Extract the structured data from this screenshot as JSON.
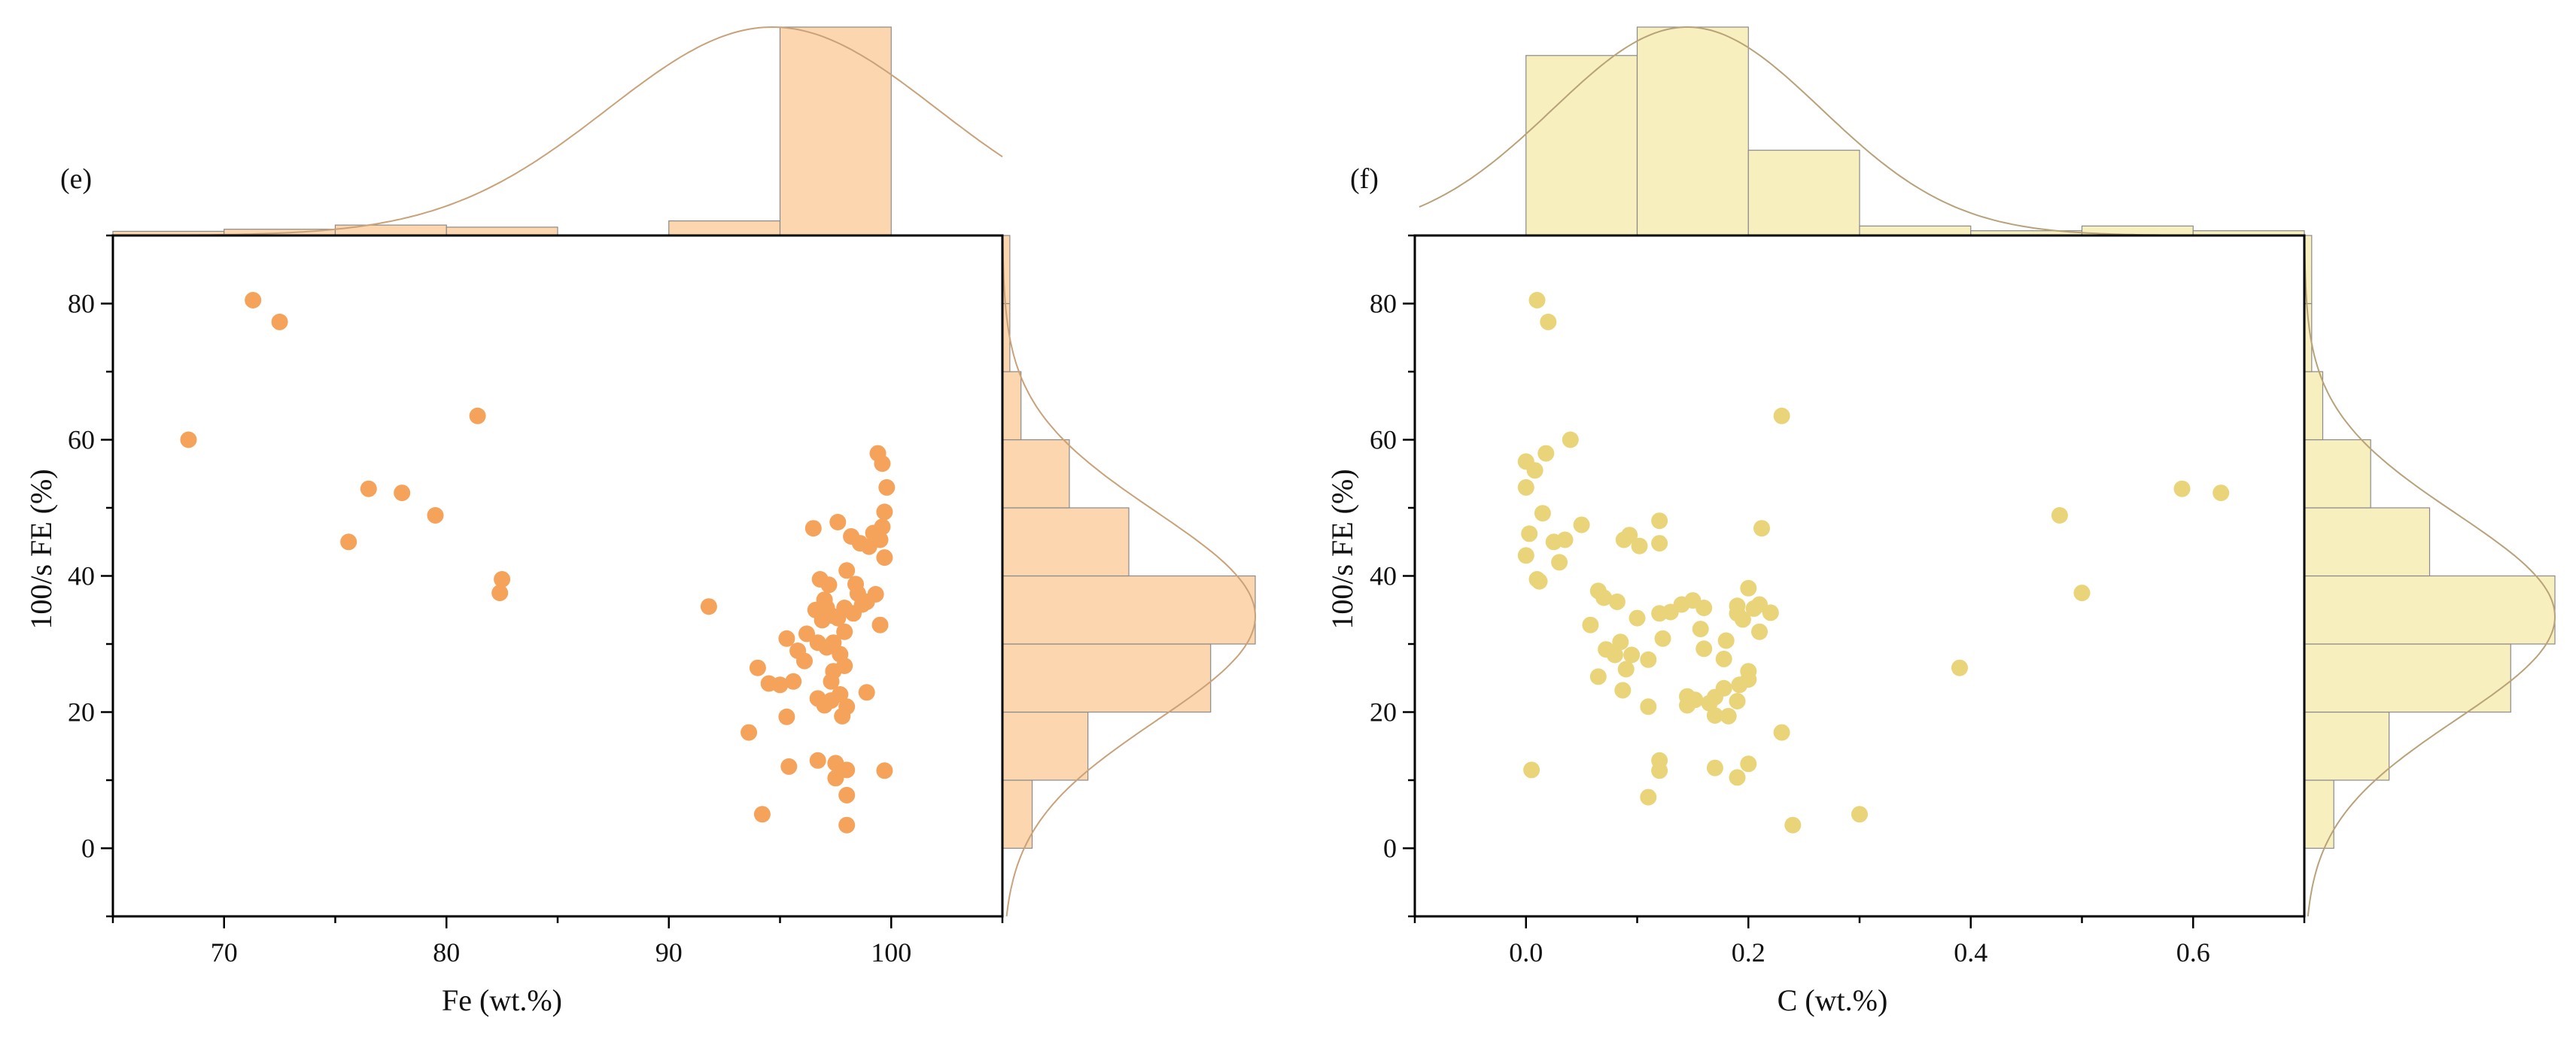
{
  "chart_data": [
    {
      "type": "scatter",
      "panel_label": "(e)",
      "xlabel": "Fe (wt.%)",
      "ylabel": "100/s FE (%)",
      "xlim": [
        65,
        105
      ],
      "ylim": [
        -10,
        90
      ],
      "xticks": [
        70,
        80,
        90,
        100
      ],
      "yticks": [
        0,
        20,
        40,
        60,
        80
      ],
      "point_color": "#F5A25A",
      "hist_color": "#FCD6AE",
      "curve_color": "#C9A27A",
      "points": [
        [
          68.4,
          60
        ],
        [
          71.3,
          80.5
        ],
        [
          72.5,
          77.3
        ],
        [
          75.6,
          45
        ],
        [
          76.5,
          52.8
        ],
        [
          78,
          52.2
        ],
        [
          79.5,
          48.9
        ],
        [
          81.4,
          63.5
        ],
        [
          82.4,
          37.5
        ],
        [
          82.5,
          39.5
        ],
        [
          91.8,
          35.5
        ],
        [
          93.6,
          17
        ],
        [
          94.0,
          26.5
        ],
        [
          94.2,
          5
        ],
        [
          94.5,
          24.2
        ],
        [
          95.0,
          24
        ],
        [
          95.3,
          19.3
        ],
        [
          95.4,
          12
        ],
        [
          95.3,
          30.8
        ],
        [
          95.6,
          24.5
        ],
        [
          95.8,
          29
        ],
        [
          96.1,
          27.5
        ],
        [
          96.2,
          31.5
        ],
        [
          96.5,
          47
        ],
        [
          96.6,
          35
        ],
        [
          96.7,
          30.2
        ],
        [
          96.7,
          22
        ],
        [
          96.7,
          12.9
        ],
        [
          96.8,
          39.5
        ],
        [
          96.9,
          33.5
        ],
        [
          97.0,
          36.5
        ],
        [
          97.0,
          21
        ],
        [
          97.1,
          35.3
        ],
        [
          97.1,
          29.5
        ],
        [
          97.2,
          38.7
        ],
        [
          97.3,
          24.5
        ],
        [
          97.3,
          21.7
        ],
        [
          97.3,
          34.2
        ],
        [
          97.4,
          30.2
        ],
        [
          97.4,
          26
        ],
        [
          97.5,
          12.5
        ],
        [
          97.5,
          10.3
        ],
        [
          97.6,
          47.9
        ],
        [
          97.6,
          33.8
        ],
        [
          97.7,
          28.5
        ],
        [
          97.7,
          22.6
        ],
        [
          97.8,
          19.4
        ],
        [
          97.9,
          35.3
        ],
        [
          97.9,
          31.8
        ],
        [
          97.9,
          26.8
        ],
        [
          98.0,
          40.8
        ],
        [
          98.0,
          20.8
        ],
        [
          98.0,
          11.5
        ],
        [
          98.0,
          7.8
        ],
        [
          98.0,
          3.4
        ],
        [
          98.2,
          45.8
        ],
        [
          98.3,
          34.5
        ],
        [
          98.4,
          38.8
        ],
        [
          98.5,
          37.4
        ],
        [
          98.6,
          44.8
        ],
        [
          98.7,
          35.8
        ],
        [
          98.9,
          22.9
        ],
        [
          98.9,
          36.2
        ],
        [
          99.0,
          44.3
        ],
        [
          99.2,
          46.3
        ],
        [
          99.3,
          37.3
        ],
        [
          99.4,
          58
        ],
        [
          99.5,
          45.3
        ],
        [
          99.5,
          32.8
        ],
        [
          99.6,
          56.5
        ],
        [
          99.6,
          47.2
        ],
        [
          99.7,
          49.4
        ],
        [
          99.7,
          42.7
        ],
        [
          99.7,
          11.4
        ],
        [
          99.8,
          53
        ]
      ],
      "top_hist": {
        "bins": [
          [
            65,
            70
          ],
          [
            70,
            75
          ],
          [
            75,
            80
          ],
          [
            80,
            85
          ],
          [
            85,
            90
          ],
          [
            90,
            95
          ],
          [
            95,
            100
          ]
        ],
        "counts": [
          2,
          3,
          5,
          4,
          0,
          7,
          100
        ]
      },
      "right_hist": {
        "bins": [
          [
            -10,
            0
          ],
          [
            0,
            10
          ],
          [
            10,
            20
          ],
          [
            20,
            30
          ],
          [
            30,
            40
          ],
          [
            40,
            50
          ],
          [
            50,
            60
          ],
          [
            60,
            70
          ],
          [
            70,
            80
          ],
          [
            80,
            90
          ]
        ],
        "counts": [
          0,
          8,
          23,
          56,
          68,
          34,
          18,
          5,
          2,
          2
        ]
      }
    },
    {
      "type": "scatter",
      "panel_label": "(f)",
      "xlabel": "C (wt.%)",
      "ylabel": "100/s FE (%)",
      "xlim": [
        -0.1,
        0.7
      ],
      "ylim": [
        -10,
        90
      ],
      "xticks": [
        0.0,
        0.2,
        0.4,
        0.6
      ],
      "xtick_labels": [
        "0.0",
        "0.2",
        "0.4",
        "0.6"
      ],
      "yticks": [
        0,
        20,
        40,
        60,
        80
      ],
      "point_color": "#E9D47A",
      "hist_color": "#F8EFBE",
      "curve_color": "#B8A27A",
      "points": [
        [
          0.005,
          11.5
        ],
        [
          0.01,
          80.5
        ],
        [
          0.02,
          77.3
        ],
        [
          0.0,
          56.8
        ],
        [
          0.0,
          53
        ],
        [
          0.003,
          46.2
        ],
        [
          0.0,
          43
        ],
        [
          0.008,
          55.5
        ],
        [
          0.01,
          39.5
        ],
        [
          0.012,
          39.2
        ],
        [
          0.015,
          49.2
        ],
        [
          0.018,
          58
        ],
        [
          0.025,
          45
        ],
        [
          0.03,
          42
        ],
        [
          0.035,
          45.3
        ],
        [
          0.04,
          60
        ],
        [
          0.05,
          47.5
        ],
        [
          0.058,
          32.8
        ],
        [
          0.065,
          37.8
        ],
        [
          0.065,
          25.2
        ],
        [
          0.07,
          36.8
        ],
        [
          0.072,
          29.2
        ],
        [
          0.08,
          28.4
        ],
        [
          0.082,
          36.2
        ],
        [
          0.085,
          30.3
        ],
        [
          0.087,
          23.2
        ],
        [
          0.088,
          45.3
        ],
        [
          0.09,
          26.3
        ],
        [
          0.093,
          46
        ],
        [
          0.095,
          28.4
        ],
        [
          0.1,
          33.8
        ],
        [
          0.102,
          44.4
        ],
        [
          0.11,
          27.7
        ],
        [
          0.11,
          20.8
        ],
        [
          0.11,
          7.5
        ],
        [
          0.12,
          44.8
        ],
        [
          0.12,
          48.1
        ],
        [
          0.12,
          34.5
        ],
        [
          0.12,
          12.9
        ],
        [
          0.12,
          11.4
        ],
        [
          0.123,
          30.8
        ],
        [
          0.13,
          34.7
        ],
        [
          0.14,
          35.8
        ],
        [
          0.145,
          22.3
        ],
        [
          0.145,
          21
        ],
        [
          0.15,
          36.4
        ],
        [
          0.152,
          21.8
        ],
        [
          0.157,
          32.2
        ],
        [
          0.16,
          29.3
        ],
        [
          0.16,
          35.3
        ],
        [
          0.165,
          21.3
        ],
        [
          0.17,
          19.5
        ],
        [
          0.17,
          11.8
        ],
        [
          0.17,
          22.2
        ],
        [
          0.178,
          27.8
        ],
        [
          0.178,
          23.5
        ],
        [
          0.18,
          30.5
        ],
        [
          0.182,
          19.4
        ],
        [
          0.19,
          35.6
        ],
        [
          0.19,
          34.5
        ],
        [
          0.19,
          21.6
        ],
        [
          0.19,
          10.4
        ],
        [
          0.192,
          24
        ],
        [
          0.195,
          33.6
        ],
        [
          0.2,
          38.2
        ],
        [
          0.2,
          26
        ],
        [
          0.2,
          24.8
        ],
        [
          0.2,
          12.4
        ],
        [
          0.205,
          35.2
        ],
        [
          0.21,
          35.8
        ],
        [
          0.21,
          31.8
        ],
        [
          0.212,
          47
        ],
        [
          0.22,
          34.6
        ],
        [
          0.23,
          63.5
        ],
        [
          0.23,
          17
        ],
        [
          0.24,
          3.4
        ],
        [
          0.3,
          5
        ],
        [
          0.39,
          26.5
        ],
        [
          0.48,
          48.9
        ],
        [
          0.5,
          37.5
        ],
        [
          0.59,
          52.8
        ],
        [
          0.625,
          52.2
        ]
      ],
      "top_hist": {
        "bins": [
          [
            0.0,
            0.1
          ],
          [
            0.1,
            0.2
          ],
          [
            0.2,
            0.3
          ],
          [
            0.3,
            0.4
          ],
          [
            0.4,
            0.5
          ],
          [
            0.5,
            0.6
          ],
          [
            0.6,
            0.7
          ]
        ],
        "counts": [
          38,
          44,
          18,
          2,
          1,
          2,
          1
        ]
      },
      "right_hist": {
        "bins": [
          [
            -10,
            0
          ],
          [
            0,
            10
          ],
          [
            10,
            20
          ],
          [
            20,
            30
          ],
          [
            30,
            40
          ],
          [
            40,
            50
          ],
          [
            50,
            60
          ],
          [
            60,
            70
          ],
          [
            70,
            80
          ],
          [
            80,
            90
          ]
        ],
        "counts": [
          0,
          8,
          23,
          56,
          68,
          34,
          18,
          5,
          2,
          2
        ]
      }
    }
  ]
}
